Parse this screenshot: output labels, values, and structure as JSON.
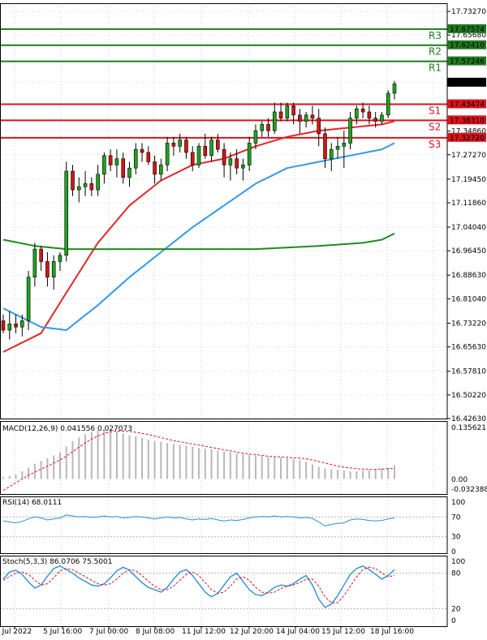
{
  "chart_data": {
    "type": "candlestick",
    "symbol": "XAGUSD",
    "timeframe": "H4",
    "price_axis": {
      "ylim": [
        16.4263,
        17.7327
      ],
      "ticks": [
        "17.73270",
        "17.65680",
        "17.57246",
        "17.50410",
        "17.43474",
        "17.38310",
        "17.34860",
        "17.32720",
        "17.27270",
        "17.19450",
        "17.11860",
        "17.04040",
        "16.96450",
        "16.88630",
        "16.81040",
        "16.73220",
        "16.65630",
        "16.57810",
        "16.50220",
        "16.42630"
      ]
    },
    "levels": [
      {
        "name": "R3",
        "value": 17.67574,
        "value_label": "17.67574",
        "color": "#1f7a1f"
      },
      {
        "name": "R2",
        "value": 17.6241,
        "value_label": "17.62410",
        "color": "#1f7a1f"
      },
      {
        "name": "R1",
        "value": 17.57246,
        "value_label": "17.57246",
        "color": "#1f7a1f"
      },
      {
        "name": "S1",
        "value": 17.43474,
        "value_label": "17.43474",
        "color": "#d9141a"
      },
      {
        "name": "S2",
        "value": 17.3831,
        "value_label": "17.38310",
        "color": "#d9141a"
      },
      {
        "name": "S3",
        "value": 17.3272,
        "value_label": "17.32720",
        "color": "#d9141a"
      }
    ],
    "current_price": {
      "value": 17.5041,
      "label": "17.50410"
    },
    "time_labels": [
      "4 Jul 2022",
      "5 Jul 16:00",
      "7 Jul 00:00",
      "8 Jul 08:00",
      "11 Jul 12:00",
      "12 Jul 20:00",
      "14 Jul 04:00",
      "15 Jul 12:00",
      "18 Jul 16:00"
    ],
    "candles": [
      [
        16.74,
        16.76,
        16.7,
        16.71
      ],
      [
        16.71,
        16.77,
        16.68,
        16.73
      ],
      [
        16.73,
        16.76,
        16.7,
        16.72
      ],
      [
        16.72,
        16.76,
        16.69,
        16.74
      ],
      [
        16.74,
        16.9,
        16.71,
        16.88
      ],
      [
        16.88,
        16.99,
        16.85,
        16.97
      ],
      [
        16.97,
        16.98,
        16.9,
        16.93
      ],
      [
        16.93,
        16.96,
        16.85,
        16.88
      ],
      [
        16.88,
        16.95,
        16.84,
        16.93
      ],
      [
        16.93,
        16.96,
        16.9,
        16.95
      ],
      [
        16.95,
        17.25,
        16.93,
        17.22
      ],
      [
        17.22,
        17.24,
        17.14,
        17.16
      ],
      [
        17.16,
        17.2,
        17.12,
        17.17
      ],
      [
        17.17,
        17.22,
        17.14,
        17.18
      ],
      [
        17.18,
        17.2,
        17.14,
        17.16
      ],
      [
        17.16,
        17.24,
        17.14,
        17.21
      ],
      [
        17.21,
        17.28,
        17.18,
        17.27
      ],
      [
        17.27,
        17.29,
        17.22,
        17.24
      ],
      [
        17.24,
        17.29,
        17.2,
        17.26
      ],
      [
        17.26,
        17.28,
        17.18,
        17.2
      ],
      [
        17.2,
        17.25,
        17.17,
        17.23
      ],
      [
        17.23,
        17.31,
        17.21,
        17.29
      ],
      [
        17.29,
        17.31,
        17.25,
        17.28
      ],
      [
        17.28,
        17.3,
        17.24,
        17.25
      ],
      [
        17.25,
        17.27,
        17.18,
        17.21
      ],
      [
        17.21,
        17.26,
        17.19,
        17.24
      ],
      [
        17.24,
        17.33,
        17.22,
        17.31
      ],
      [
        17.31,
        17.33,
        17.27,
        17.3
      ],
      [
        17.3,
        17.34,
        17.28,
        17.32
      ],
      [
        17.32,
        17.33,
        17.26,
        17.28
      ],
      [
        17.28,
        17.3,
        17.22,
        17.24
      ],
      [
        17.24,
        17.31,
        17.23,
        17.3
      ],
      [
        17.3,
        17.34,
        17.26,
        17.27
      ],
      [
        17.27,
        17.33,
        17.25,
        17.32
      ],
      [
        17.32,
        17.34,
        17.28,
        17.29
      ],
      [
        17.29,
        17.31,
        17.2,
        17.24
      ],
      [
        17.24,
        17.28,
        17.19,
        17.26
      ],
      [
        17.26,
        17.29,
        17.21,
        17.23
      ],
      [
        17.23,
        17.26,
        17.19,
        17.24
      ],
      [
        17.24,
        17.33,
        17.22,
        17.31
      ],
      [
        17.31,
        17.37,
        17.29,
        17.35
      ],
      [
        17.35,
        17.38,
        17.33,
        17.37
      ],
      [
        17.37,
        17.39,
        17.33,
        17.35
      ],
      [
        17.35,
        17.44,
        17.34,
        17.41
      ],
      [
        17.41,
        17.44,
        17.38,
        17.39
      ],
      [
        17.39,
        17.44,
        17.38,
        17.43
      ],
      [
        17.43,
        17.44,
        17.37,
        17.4
      ],
      [
        17.4,
        17.42,
        17.34,
        17.38
      ],
      [
        17.38,
        17.41,
        17.36,
        17.4
      ],
      [
        17.4,
        17.43,
        17.37,
        17.39
      ],
      [
        17.39,
        17.42,
        17.3,
        17.34
      ],
      [
        17.34,
        17.36,
        17.23,
        17.26
      ],
      [
        17.26,
        17.31,
        17.22,
        17.29
      ],
      [
        17.29,
        17.33,
        17.26,
        17.3
      ],
      [
        17.3,
        17.35,
        17.23,
        17.31
      ],
      [
        17.31,
        17.41,
        17.29,
        17.39
      ],
      [
        17.39,
        17.43,
        17.37,
        17.42
      ],
      [
        17.42,
        17.44,
        17.39,
        17.41
      ],
      [
        17.41,
        17.43,
        17.37,
        17.39
      ],
      [
        17.39,
        17.41,
        17.36,
        17.38
      ],
      [
        17.38,
        17.41,
        17.37,
        17.4
      ],
      [
        17.4,
        17.48,
        17.39,
        17.47
      ],
      [
        17.47,
        17.51,
        17.45,
        17.5
      ]
    ],
    "moving_averages": [
      {
        "name": "EMA fast",
        "color": "#e0282a",
        "points": [
          [
            0,
            16.64
          ],
          [
            6,
            16.7
          ],
          [
            10,
            16.83
          ],
          [
            15,
            16.99
          ],
          [
            20,
            17.11
          ],
          [
            25,
            17.19
          ],
          [
            30,
            17.24
          ],
          [
            35,
            17.26
          ],
          [
            40,
            17.3
          ],
          [
            45,
            17.33
          ],
          [
            50,
            17.35
          ],
          [
            55,
            17.36
          ],
          [
            60,
            17.37
          ],
          [
            62,
            17.38
          ]
        ]
      },
      {
        "name": "EMA mid",
        "color": "#3399e6",
        "points": [
          [
            0,
            16.78
          ],
          [
            6,
            16.72
          ],
          [
            10,
            16.71
          ],
          [
            15,
            16.79
          ],
          [
            20,
            16.88
          ],
          [
            25,
            16.96
          ],
          [
            30,
            17.04
          ],
          [
            35,
            17.11
          ],
          [
            40,
            17.18
          ],
          [
            45,
            17.23
          ],
          [
            50,
            17.25
          ],
          [
            55,
            17.27
          ],
          [
            60,
            17.29
          ],
          [
            62,
            17.31
          ]
        ]
      },
      {
        "name": "SMA slow",
        "color": "#1f8a1f",
        "points": [
          [
            0,
            17.0
          ],
          [
            5,
            16.98
          ],
          [
            10,
            16.97
          ],
          [
            20,
            16.97
          ],
          [
            30,
            16.97
          ],
          [
            40,
            16.97
          ],
          [
            50,
            16.98
          ],
          [
            57,
            16.99
          ],
          [
            60,
            17.0
          ],
          [
            62,
            17.02
          ]
        ]
      }
    ],
    "macd": {
      "label": "MACD(12,26,9) 0.041556 0.027073",
      "ylim": [
        -0.032388,
        0.135621
      ],
      "ticks": [
        "0.135621",
        "0.00",
        "-0.032388"
      ],
      "hist": [
        0.005,
        0.008,
        0.012,
        0.02,
        0.03,
        0.04,
        0.048,
        0.055,
        0.062,
        0.07,
        0.085,
        0.1,
        0.11,
        0.118,
        0.124,
        0.128,
        0.13,
        0.128,
        0.125,
        0.12,
        0.115,
        0.112,
        0.108,
        0.104,
        0.1,
        0.098,
        0.095,
        0.092,
        0.09,
        0.088,
        0.085,
        0.082,
        0.08,
        0.078,
        0.075,
        0.072,
        0.07,
        0.068,
        0.066,
        0.064,
        0.062,
        0.06,
        0.058,
        0.057,
        0.056,
        0.055,
        0.053,
        0.05,
        0.045,
        0.038,
        0.032,
        0.028,
        0.026,
        0.024,
        0.022,
        0.02,
        0.02,
        0.022,
        0.024,
        0.026,
        0.028,
        0.03,
        0.036
      ],
      "signal": [
        -0.03,
        -0.02,
        -0.01,
        0.0,
        0.01,
        0.018,
        0.026,
        0.034,
        0.042,
        0.05,
        0.06,
        0.072,
        0.084,
        0.095,
        0.105,
        0.113,
        0.12,
        0.124,
        0.126,
        0.126,
        0.125,
        0.123,
        0.12,
        0.117,
        0.113,
        0.109,
        0.105,
        0.101,
        0.098,
        0.095,
        0.092,
        0.089,
        0.086,
        0.083,
        0.08,
        0.077,
        0.074,
        0.071,
        0.068,
        0.066,
        0.064,
        0.062,
        0.06,
        0.059,
        0.058,
        0.057,
        0.056,
        0.055,
        0.053,
        0.05,
        0.046,
        0.042,
        0.038,
        0.034,
        0.031,
        0.029,
        0.027,
        0.026,
        0.025,
        0.025,
        0.026,
        0.027,
        0.028
      ]
    },
    "rsi": {
      "label": "RSI(14) 68.0111",
      "ylim": [
        0,
        100
      ],
      "ticks": [
        "100",
        "70",
        "30",
        "0"
      ],
      "values": [
        62,
        60,
        58,
        61,
        66,
        70,
        68,
        64,
        66,
        68,
        74,
        72,
        70,
        71,
        69,
        70,
        72,
        70,
        71,
        68,
        69,
        71,
        70,
        68,
        66,
        68,
        70,
        68,
        69,
        66,
        64,
        66,
        65,
        67,
        64,
        62,
        64,
        63,
        65,
        68,
        70,
        71,
        70,
        72,
        70,
        71,
        70,
        68,
        69,
        67,
        60,
        52,
        55,
        57,
        58,
        64,
        66,
        65,
        63,
        62,
        63,
        66,
        68
      ]
    },
    "stoch": {
      "label": "Stoch(5,3,3) 86.0706 75.5001",
      "ylim": [
        0,
        100
      ],
      "ticks": [
        "100",
        "80",
        "20",
        "0"
      ],
      "k": [
        70,
        82,
        85,
        78,
        65,
        55,
        60,
        75,
        88,
        92,
        86,
        80,
        72,
        66,
        60,
        58,
        62,
        72,
        84,
        90,
        85,
        74,
        64,
        56,
        52,
        48,
        56,
        70,
        82,
        86,
        76,
        62,
        48,
        40,
        46,
        60,
        74,
        80,
        66,
        52,
        44,
        42,
        48,
        56,
        60,
        58,
        62,
        70,
        76,
        60,
        36,
        22,
        28,
        42,
        60,
        78,
        88,
        92,
        86,
        78,
        70,
        76,
        86
      ],
      "d": [
        68,
        74,
        80,
        82,
        78,
        68,
        60,
        62,
        72,
        84,
        88,
        86,
        80,
        74,
        68,
        62,
        60,
        62,
        70,
        80,
        86,
        84,
        76,
        66,
        58,
        52,
        52,
        58,
        68,
        78,
        82,
        76,
        64,
        52,
        46,
        48,
        58,
        70,
        74,
        68,
        56,
        48,
        46,
        48,
        54,
        58,
        60,
        64,
        70,
        70,
        58,
        40,
        30,
        30,
        42,
        58,
        74,
        86,
        90,
        88,
        80,
        74,
        76
      ]
    }
  }
}
